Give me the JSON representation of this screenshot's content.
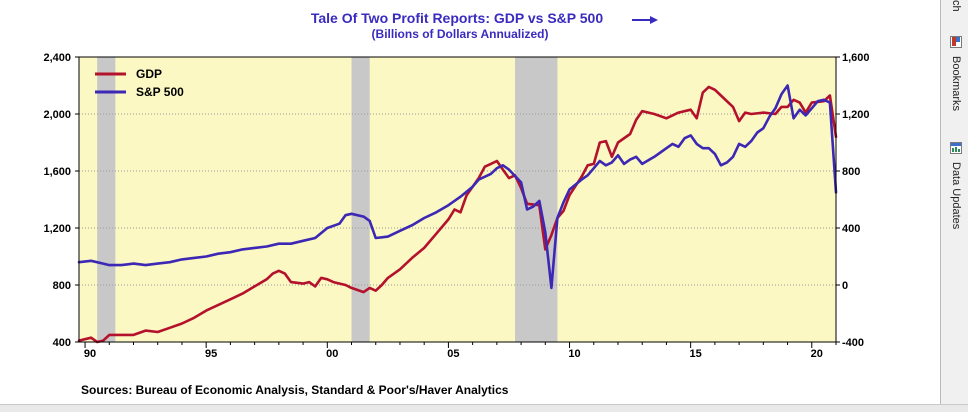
{
  "chart_data": {
    "type": "line",
    "title": "Tale Of Two Profit Reports: GDP vs S&P 500",
    "subtitle": "(Billions of Dollars Annualized)",
    "source": "Sources:  Bureau of Economic Analysis, Standard & Poor's/Haver Analytics",
    "x_ticks": [
      "90",
      "95",
      "00",
      "05",
      "10",
      "15",
      "20"
    ],
    "left_axis": {
      "ylim": [
        400,
        2400
      ],
      "ticks": [
        "400",
        "800",
        "1,200",
        "1,600",
        "2,000",
        "2,400"
      ]
    },
    "right_axis": {
      "ylim": [
        -400,
        1600
      ],
      "ticks": [
        "-400",
        "0",
        "400",
        "800",
        "1,200",
        "1,600"
      ]
    },
    "xlim": [
      1989.75,
      2021.0
    ],
    "recessions": [
      [
        1990.5,
        1991.25
      ],
      [
        2001.0,
        2001.75
      ],
      [
        2007.75,
        2009.5
      ]
    ],
    "grid": true,
    "legend_position": "top-left",
    "series": [
      {
        "name": "GDP",
        "axis": "left",
        "color": "#b4122c",
        "points": [
          [
            1989.75,
            410
          ],
          [
            1990.25,
            430
          ],
          [
            1990.5,
            400
          ],
          [
            1990.75,
            410
          ],
          [
            1991.0,
            450
          ],
          [
            1991.5,
            450
          ],
          [
            1992.0,
            450
          ],
          [
            1992.5,
            480
          ],
          [
            1993.0,
            470
          ],
          [
            1993.5,
            500
          ],
          [
            1994.0,
            530
          ],
          [
            1994.5,
            570
          ],
          [
            1995.0,
            620
          ],
          [
            1995.5,
            660
          ],
          [
            1996.0,
            700
          ],
          [
            1996.5,
            740
          ],
          [
            1997.0,
            790
          ],
          [
            1997.5,
            840
          ],
          [
            1997.75,
            880
          ],
          [
            1998.0,
            900
          ],
          [
            1998.25,
            880
          ],
          [
            1998.5,
            820
          ],
          [
            1999.0,
            810
          ],
          [
            1999.25,
            820
          ],
          [
            1999.5,
            790
          ],
          [
            1999.75,
            850
          ],
          [
            2000.0,
            840
          ],
          [
            2000.25,
            820
          ],
          [
            2000.75,
            800
          ],
          [
            2001.0,
            780
          ],
          [
            2001.5,
            750
          ],
          [
            2001.75,
            780
          ],
          [
            2002.0,
            760
          ],
          [
            2002.25,
            800
          ],
          [
            2002.5,
            850
          ],
          [
            2003.0,
            910
          ],
          [
            2003.5,
            990
          ],
          [
            2004.0,
            1060
          ],
          [
            2004.5,
            1160
          ],
          [
            2005.0,
            1260
          ],
          [
            2005.25,
            1330
          ],
          [
            2005.5,
            1310
          ],
          [
            2005.75,
            1430
          ],
          [
            2006.25,
            1550
          ],
          [
            2006.5,
            1630
          ],
          [
            2006.75,
            1650
          ],
          [
            2007.0,
            1670
          ],
          [
            2007.25,
            1610
          ],
          [
            2007.5,
            1550
          ],
          [
            2007.75,
            1570
          ],
          [
            2008.0,
            1480
          ],
          [
            2008.25,
            1370
          ],
          [
            2008.75,
            1360
          ],
          [
            2009.0,
            1050
          ],
          [
            2009.25,
            1150
          ],
          [
            2009.5,
            1270
          ],
          [
            2009.75,
            1320
          ],
          [
            2010.0,
            1430
          ],
          [
            2010.5,
            1560
          ],
          [
            2010.75,
            1640
          ],
          [
            2011.0,
            1650
          ],
          [
            2011.25,
            1800
          ],
          [
            2011.5,
            1810
          ],
          [
            2011.75,
            1700
          ],
          [
            2012.0,
            1800
          ],
          [
            2012.5,
            1860
          ],
          [
            2012.75,
            1960
          ],
          [
            2013.0,
            2020
          ],
          [
            2013.5,
            2000
          ],
          [
            2014.0,
            1970
          ],
          [
            2014.5,
            2010
          ],
          [
            2015.0,
            2030
          ],
          [
            2015.25,
            1970
          ],
          [
            2015.5,
            2150
          ],
          [
            2015.75,
            2190
          ],
          [
            2016.0,
            2170
          ],
          [
            2016.25,
            2130
          ],
          [
            2016.75,
            2050
          ],
          [
            2017.0,
            1950
          ],
          [
            2017.25,
            2010
          ],
          [
            2017.5,
            2000
          ],
          [
            2018.0,
            2010
          ],
          [
            2018.5,
            2000
          ],
          [
            2018.75,
            2050
          ],
          [
            2019.0,
            2050
          ],
          [
            2019.25,
            2100
          ],
          [
            2019.5,
            2080
          ],
          [
            2019.75,
            2010
          ],
          [
            2020.0,
            2080
          ],
          [
            2020.5,
            2090
          ],
          [
            2020.75,
            2130
          ],
          [
            2021.0,
            1840
          ]
        ]
      },
      {
        "name": "S&P 500",
        "axis": "right",
        "color": "#3c28b4",
        "points": [
          [
            1989.75,
            160
          ],
          [
            1990.25,
            170
          ],
          [
            1990.75,
            150
          ],
          [
            1991.0,
            140
          ],
          [
            1991.5,
            140
          ],
          [
            1992.0,
            150
          ],
          [
            1992.5,
            140
          ],
          [
            1993.0,
            150
          ],
          [
            1993.5,
            160
          ],
          [
            1994.0,
            180
          ],
          [
            1994.5,
            190
          ],
          [
            1995.0,
            200
          ],
          [
            1995.5,
            220
          ],
          [
            1996.0,
            230
          ],
          [
            1996.5,
            250
          ],
          [
            1997.0,
            260
          ],
          [
            1997.5,
            270
          ],
          [
            1998.0,
            290
          ],
          [
            1998.5,
            290
          ],
          [
            1999.0,
            310
          ],
          [
            1999.5,
            330
          ],
          [
            2000.0,
            400
          ],
          [
            2000.5,
            430
          ],
          [
            2000.75,
            490
          ],
          [
            2001.0,
            500
          ],
          [
            2001.5,
            480
          ],
          [
            2001.75,
            450
          ],
          [
            2002.0,
            330
          ],
          [
            2002.5,
            340
          ],
          [
            2003.0,
            380
          ],
          [
            2003.5,
            420
          ],
          [
            2004.0,
            470
          ],
          [
            2004.5,
            510
          ],
          [
            2005.0,
            560
          ],
          [
            2005.5,
            620
          ],
          [
            2006.0,
            690
          ],
          [
            2006.25,
            740
          ],
          [
            2006.75,
            780
          ],
          [
            2007.0,
            820
          ],
          [
            2007.25,
            840
          ],
          [
            2007.5,
            810
          ],
          [
            2008.0,
            720
          ],
          [
            2008.25,
            530
          ],
          [
            2008.5,
            550
          ],
          [
            2008.75,
            590
          ],
          [
            2009.0,
            370
          ],
          [
            2009.25,
            -20
          ],
          [
            2009.5,
            470
          ],
          [
            2009.75,
            580
          ],
          [
            2010.0,
            670
          ],
          [
            2010.5,
            740
          ],
          [
            2010.75,
            770
          ],
          [
            2011.0,
            820
          ],
          [
            2011.25,
            870
          ],
          [
            2011.5,
            840
          ],
          [
            2011.75,
            860
          ],
          [
            2012.0,
            910
          ],
          [
            2012.25,
            850
          ],
          [
            2012.5,
            880
          ],
          [
            2012.75,
            900
          ],
          [
            2013.0,
            850
          ],
          [
            2013.5,
            900
          ],
          [
            2013.75,
            930
          ],
          [
            2014.0,
            960
          ],
          [
            2014.25,
            990
          ],
          [
            2014.5,
            970
          ],
          [
            2014.75,
            1030
          ],
          [
            2015.0,
            1050
          ],
          [
            2015.25,
            990
          ],
          [
            2015.5,
            960
          ],
          [
            2015.75,
            960
          ],
          [
            2016.0,
            920
          ],
          [
            2016.25,
            840
          ],
          [
            2016.5,
            860
          ],
          [
            2016.75,
            900
          ],
          [
            2017.0,
            990
          ],
          [
            2017.25,
            970
          ],
          [
            2017.5,
            1010
          ],
          [
            2017.75,
            1070
          ],
          [
            2018.0,
            1100
          ],
          [
            2018.25,
            1180
          ],
          [
            2018.5,
            1240
          ],
          [
            2018.75,
            1340
          ],
          [
            2019.0,
            1400
          ],
          [
            2019.25,
            1170
          ],
          [
            2019.5,
            1230
          ],
          [
            2019.75,
            1190
          ],
          [
            2020.0,
            1240
          ],
          [
            2020.25,
            1290
          ],
          [
            2020.5,
            1300
          ],
          [
            2020.75,
            1280
          ],
          [
            2021.0,
            650
          ]
        ]
      }
    ]
  },
  "side_panel": {
    "items": [
      {
        "label": "ch",
        "icon": ""
      },
      {
        "label": "Bookmarks",
        "icon": "bookmark-icon"
      },
      {
        "label": "Data Updates",
        "icon": "data-updates-icon"
      }
    ]
  }
}
